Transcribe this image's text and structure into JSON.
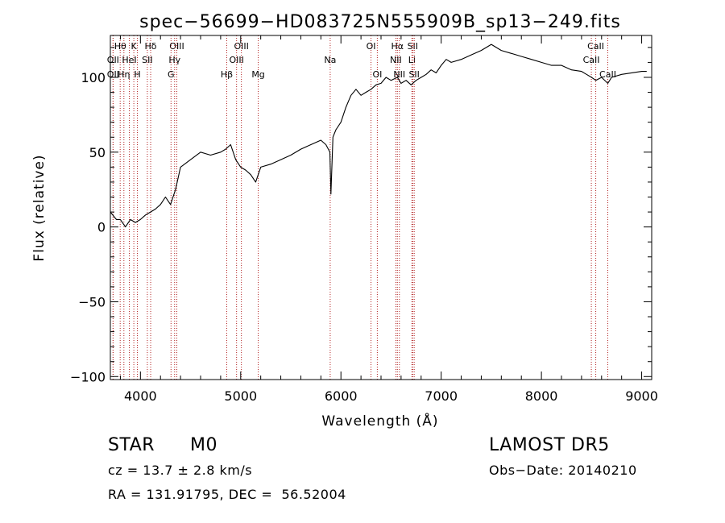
{
  "chart_data": {
    "type": "line",
    "title": "spec−56699−HD083725N555909B_sp13−249.fits",
    "xlabel": "Wavelength (Å)",
    "ylabel": "Flux (relative)",
    "xlim": [
      3700,
      9100
    ],
    "ylim": [
      -102,
      128
    ],
    "xticks": [
      4000,
      5000,
      6000,
      7000,
      8000,
      9000
    ],
    "xtick_labels": [
      "4000",
      "5000",
      "6000",
      "7000",
      "8000",
      "9000"
    ],
    "yticks": [
      -100,
      -50,
      0,
      50,
      100
    ],
    "ytick_labels": [
      "−100",
      "−50",
      "0",
      "50",
      "100"
    ],
    "series": [
      {
        "x": [
          3700,
          3760,
          3800,
          3850,
          3900,
          3950,
          4000,
          4050,
          4100,
          4150,
          4200,
          4250,
          4300,
          4350,
          4400,
          4500,
          4600,
          4700,
          4800,
          4850,
          4900,
          4950,
          5000,
          5050,
          5100,
          5150,
          5200,
          5300,
          5400,
          5500,
          5600,
          5700,
          5800,
          5850,
          5890,
          5900,
          5920,
          5950,
          6000,
          6050,
          6100,
          6150,
          6200,
          6250,
          6300,
          6350,
          6400,
          6450,
          6500,
          6563,
          6600,
          6650,
          6700,
          6750,
          6800,
          6850,
          6900,
          6950,
          7000,
          7050,
          7100,
          7200,
          7300,
          7400,
          7500,
          7550,
          7600,
          7700,
          7800,
          7900,
          8000,
          8100,
          8200,
          8300,
          8400,
          8450,
          8500,
          8542,
          8600,
          8662,
          8700,
          8800,
          8900,
          9000,
          9050
        ],
        "values": [
          10,
          5,
          5,
          0,
          5,
          3,
          5,
          8,
          10,
          12,
          15,
          20,
          15,
          25,
          40,
          45,
          50,
          48,
          50,
          52,
          55,
          45,
          40,
          38,
          35,
          30,
          40,
          42,
          45,
          48,
          52,
          55,
          58,
          55,
          50,
          22,
          60,
          65,
          70,
          80,
          88,
          92,
          88,
          90,
          92,
          95,
          96,
          100,
          98,
          100,
          96,
          98,
          95,
          98,
          100,
          102,
          105,
          103,
          108,
          112,
          110,
          112,
          115,
          118,
          122,
          120,
          118,
          116,
          114,
          112,
          110,
          108,
          108,
          105,
          104,
          102,
          100,
          98,
          100,
          96,
          100,
          102,
          103,
          104,
          104
        ]
      }
    ],
    "lines": [
      {
        "label": "Hθ",
        "x": 3798,
        "row": 0
      },
      {
        "label": "OII",
        "x": 3727,
        "row": 1
      },
      {
        "label": "OII",
        "x": 3727,
        "row": 2
      },
      {
        "label": "K",
        "x": 3934,
        "row": 0
      },
      {
        "label": "HeI",
        "x": 3889,
        "row": 1
      },
      {
        "label": "Hη",
        "x": 3835,
        "row": 2
      },
      {
        "label": "H",
        "x": 3969,
        "row": 2
      },
      {
        "label": "Hδ",
        "x": 4102,
        "row": 0
      },
      {
        "label": "SII",
        "x": 4069,
        "row": 1
      },
      {
        "label": "OIII",
        "x": 4363,
        "row": 0
      },
      {
        "label": "Hγ",
        "x": 4341,
        "row": 1
      },
      {
        "label": "G",
        "x": 4305,
        "row": 2
      },
      {
        "label": "OIII",
        "x": 5007,
        "row": 0
      },
      {
        "label": "OIII",
        "x": 4959,
        "row": 1
      },
      {
        "label": "Hβ",
        "x": 4861,
        "row": 2
      },
      {
        "label": "Mg",
        "x": 5175,
        "row": 2
      },
      {
        "label": "Na",
        "x": 5893,
        "row": 1
      },
      {
        "label": "OI",
        "x": 6300,
        "row": 0
      },
      {
        "label": "OI",
        "x": 6363,
        "row": 2
      },
      {
        "label": "Hα",
        "x": 6563,
        "row": 0
      },
      {
        "label": "SII",
        "x": 6716,
        "row": 0
      },
      {
        "label": "NII",
        "x": 6548,
        "row": 1
      },
      {
        "label": "Li",
        "x": 6708,
        "row": 1
      },
      {
        "label": "NII",
        "x": 6583,
        "row": 2
      },
      {
        "label": "SII",
        "x": 6731,
        "row": 2
      },
      {
        "label": "CaII",
        "x": 8542,
        "row": 0
      },
      {
        "label": "CaII",
        "x": 8498,
        "row": 1
      },
      {
        "label": "CaII",
        "x": 8662,
        "row": 2
      }
    ]
  },
  "info": {
    "object_class": "STAR",
    "subclass": "M0",
    "survey": "LAMOST DR5",
    "cz": "cz = 13.7 ± 2.8 km/s",
    "obs_date": "Obs−Date: 20140210",
    "coords": "RA = 131.91795, DEC =  56.52004"
  }
}
